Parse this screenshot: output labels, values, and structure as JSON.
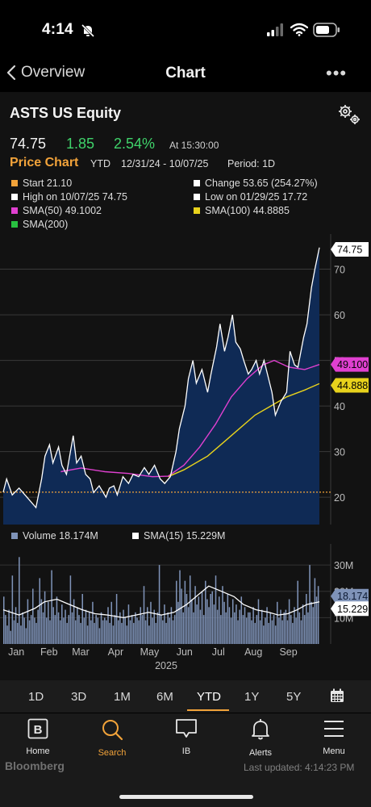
{
  "status_bar": {
    "time": "4:14"
  },
  "nav": {
    "back_label": "Overview",
    "title": "Chart",
    "more_label": "•••"
  },
  "quote": {
    "ticker": "ASTS US Equity",
    "price": "74.75",
    "change": "1.85",
    "change_pct": "2.54%",
    "time_label": "At 15:30:00"
  },
  "chart_header": {
    "title": "Price Chart",
    "range": "YTD",
    "dates": "12/31/24 - 10/07/25",
    "period": "Period: 1D"
  },
  "legend": {
    "start": "Start  21.10",
    "change": "Change  53.65 (254.27%)",
    "high": "High on 10/07/25  74.75",
    "low": "Low on 01/29/25  17.72",
    "sma50": "SMA(50)  49.1002",
    "sma100": "SMA(100)  44.8885",
    "sma200": "SMA(200)"
  },
  "volume_legend": {
    "volume": "Volume  18.174M",
    "sma15": "SMA(15)  15.229M"
  },
  "badges": {
    "price": "74.75",
    "sma50": "49.100",
    "sma100": "44.888",
    "volume": "18.174",
    "vol_sma": "15.229"
  },
  "colors": {
    "accent": "#f2a33a",
    "up": "#3fd26a",
    "sma50": "#e040d0",
    "sma100": "#e8d21c",
    "sma200": "#28c040",
    "area": "#0f2a55",
    "volume_bar": "#7f93b8"
  },
  "chart_data": {
    "type": "area",
    "title": "Price Chart",
    "x_ticks": [
      "Jan",
      "Feb",
      "Mar",
      "Apr",
      "May",
      "Jun",
      "Jul",
      "Aug",
      "Sep"
    ],
    "x_sublabel": "2025",
    "y_ticks": [
      20,
      30,
      40,
      50,
      60,
      70
    ],
    "ylim": [
      14,
      77
    ],
    "price_reference_line": 21.1,
    "price_series": {
      "name": "ASTS",
      "points": [
        [
          "2024-12-31",
          21.1
        ],
        [
          "2025-01-03",
          24.0
        ],
        [
          "2025-01-08",
          20.5
        ],
        [
          "2025-01-14",
          22.0
        ],
        [
          "2025-01-21",
          20.0
        ],
        [
          "2025-01-29",
          17.72
        ],
        [
          "2025-02-03",
          24.0
        ],
        [
          "2025-02-06",
          29.0
        ],
        [
          "2025-02-10",
          31.5
        ],
        [
          "2025-02-13",
          27.5
        ],
        [
          "2025-02-18",
          31.0
        ],
        [
          "2025-02-21",
          27.0
        ],
        [
          "2025-02-25",
          25.0
        ],
        [
          "2025-03-03",
          33.5
        ],
        [
          "2025-03-06",
          27.5
        ],
        [
          "2025-03-10",
          29.0
        ],
        [
          "2025-03-14",
          25.0
        ],
        [
          "2025-03-18",
          24.0
        ],
        [
          "2025-03-21",
          21.0
        ],
        [
          "2025-03-26",
          22.5
        ],
        [
          "2025-04-01",
          20.0
        ],
        [
          "2025-04-04",
          22.0
        ],
        [
          "2025-04-08",
          22.5
        ],
        [
          "2025-04-11",
          20.5
        ],
        [
          "2025-04-16",
          24.5
        ],
        [
          "2025-04-21",
          23.0
        ],
        [
          "2025-04-25",
          25.0
        ],
        [
          "2025-04-30",
          24.5
        ],
        [
          "2025-05-05",
          26.5
        ],
        [
          "2025-05-09",
          25.0
        ],
        [
          "2025-05-14",
          27.0
        ],
        [
          "2025-05-19",
          24.0
        ],
        [
          "2025-05-23",
          23.0
        ],
        [
          "2025-05-28",
          24.5
        ],
        [
          "2025-06-02",
          30.0
        ],
        [
          "2025-06-05",
          35.0
        ],
        [
          "2025-06-10",
          40.0
        ],
        [
          "2025-06-13",
          46.0
        ],
        [
          "2025-06-17",
          50.0
        ],
        [
          "2025-06-20",
          45.0
        ],
        [
          "2025-06-25",
          48.0
        ],
        [
          "2025-06-30",
          43.0
        ],
        [
          "2025-07-03",
          47.0
        ],
        [
          "2025-07-08",
          53.0
        ],
        [
          "2025-07-11",
          58.0
        ],
        [
          "2025-07-15",
          52.0
        ],
        [
          "2025-07-18",
          55.0
        ],
        [
          "2025-07-22",
          60.0
        ],
        [
          "2025-07-25",
          54.0
        ],
        [
          "2025-07-29",
          52.5
        ],
        [
          "2025-08-01",
          50.0
        ],
        [
          "2025-08-05",
          47.0
        ],
        [
          "2025-08-08",
          48.0
        ],
        [
          "2025-08-12",
          50.0
        ],
        [
          "2025-08-15",
          47.0
        ],
        [
          "2025-08-19",
          50.0
        ],
        [
          "2025-08-22",
          47.0
        ],
        [
          "2025-08-26",
          43.0
        ],
        [
          "2025-08-29",
          38.0
        ],
        [
          "2025-09-03",
          41.0
        ],
        [
          "2025-09-08",
          43.0
        ],
        [
          "2025-09-11",
          52.0
        ],
        [
          "2025-09-15",
          49.0
        ],
        [
          "2025-09-18",
          48.5
        ],
        [
          "2025-09-23",
          55.0
        ],
        [
          "2025-09-26",
          58.0
        ],
        [
          "2025-09-30",
          66.0
        ],
        [
          "2025-10-03",
          70.0
        ],
        [
          "2025-10-07",
          74.75
        ]
      ]
    },
    "sma50_series": {
      "name": "SMA(50)",
      "points": [
        [
          "2025-02-20",
          25.6
        ],
        [
          "2025-03-10",
          26.4
        ],
        [
          "2025-03-31",
          25.6
        ],
        [
          "2025-04-21",
          25.2
        ],
        [
          "2025-05-12",
          24.5
        ],
        [
          "2025-05-26",
          24.6
        ],
        [
          "2025-06-09",
          27.0
        ],
        [
          "2025-06-23",
          31.0
        ],
        [
          "2025-07-07",
          36.0
        ],
        [
          "2025-07-21",
          42.0
        ],
        [
          "2025-08-04",
          46.0
        ],
        [
          "2025-08-18",
          49.0
        ],
        [
          "2025-08-28",
          50.0
        ],
        [
          "2025-09-10",
          48.5
        ],
        [
          "2025-09-24",
          48.0
        ],
        [
          "2025-10-07",
          49.1
        ]
      ]
    },
    "sma100_series": {
      "name": "SMA(100)",
      "points": [
        [
          "2025-05-26",
          24.5
        ],
        [
          "2025-06-09",
          26.0
        ],
        [
          "2025-06-30",
          29.0
        ],
        [
          "2025-07-14",
          32.0
        ],
        [
          "2025-07-28",
          35.0
        ],
        [
          "2025-08-11",
          38.0
        ],
        [
          "2025-08-25",
          40.0
        ],
        [
          "2025-09-08",
          42.0
        ],
        [
          "2025-09-24",
          43.5
        ],
        [
          "2025-10-07",
          44.89
        ]
      ]
    },
    "volume": {
      "name": "Volume",
      "unit": "M",
      "y_ticks": [
        "10M",
        "20M",
        "30M"
      ],
      "ylim": [
        0,
        38
      ],
      "sma_name": "SMA(15)",
      "monthly_levels": [
        {
          "month": "Jan",
          "values": [
            18,
            11,
            7,
            13,
            5,
            26,
            9,
            14,
            8,
            33,
            7,
            12,
            10,
            6,
            17,
            9,
            11,
            21,
            10,
            8
          ]
        },
        {
          "month": "Feb",
          "values": [
            13,
            25,
            17,
            12,
            20,
            10,
            16,
            9,
            28,
            14,
            11,
            18,
            12,
            9,
            15,
            10,
            13,
            8,
            11
          ]
        },
        {
          "month": "Mar",
          "values": [
            26,
            12,
            17,
            9,
            14,
            11,
            8,
            19,
            10,
            13,
            7,
            12,
            9,
            16,
            8,
            11,
            10,
            6,
            12,
            9,
            10
          ]
        },
        {
          "month": "Apr",
          "values": [
            9,
            14,
            8,
            16,
            7,
            11,
            19,
            9,
            12,
            8,
            13,
            10,
            7,
            15,
            9,
            11,
            8,
            12,
            10,
            9,
            14
          ]
        },
        {
          "month": "May",
          "values": [
            11,
            22,
            9,
            14,
            7,
            16,
            10,
            13,
            8,
            12,
            30,
            11,
            9,
            15,
            8,
            12,
            10,
            14,
            9,
            11,
            24
          ]
        },
        {
          "month": "Jun",
          "values": [
            16,
            28,
            21,
            12,
            24,
            19,
            14,
            26,
            17,
            12,
            22,
            15,
            18,
            13,
            20,
            11,
            24,
            17,
            14,
            19
          ]
        },
        {
          "month": "Jul",
          "values": [
            20,
            15,
            26,
            13,
            18,
            11,
            22,
            16,
            12,
            19,
            14,
            10,
            17,
            12,
            15,
            9,
            13,
            18,
            11,
            14,
            10,
            12
          ]
        },
        {
          "month": "Aug",
          "values": [
            12,
            9,
            14,
            8,
            11,
            17,
            9,
            13,
            7,
            10,
            14,
            8,
            12,
            9,
            11,
            7,
            16,
            10,
            13,
            9,
            12
          ]
        },
        {
          "month": "Sep",
          "values": [
            13,
            9,
            17,
            11,
            8,
            14,
            10,
            24,
            12,
            9,
            15,
            11,
            19,
            12,
            30,
            16,
            14,
            25,
            18,
            22
          ]
        }
      ],
      "sma_points": [
        [
          0,
          13
        ],
        [
          0.05,
          11
        ],
        [
          0.1,
          13.5
        ],
        [
          0.13,
          16
        ],
        [
          0.17,
          17
        ],
        [
          0.21,
          15
        ],
        [
          0.25,
          13
        ],
        [
          0.29,
          11.5
        ],
        [
          0.33,
          11
        ],
        [
          0.38,
          10
        ],
        [
          0.42,
          11
        ],
        [
          0.46,
          12
        ],
        [
          0.5,
          11
        ],
        [
          0.54,
          12
        ],
        [
          0.58,
          15
        ],
        [
          0.62,
          19
        ],
        [
          0.65,
          22
        ],
        [
          0.69,
          20
        ],
        [
          0.73,
          18
        ],
        [
          0.76,
          15
        ],
        [
          0.8,
          13
        ],
        [
          0.84,
          12
        ],
        [
          0.87,
          11
        ],
        [
          0.9,
          11.5
        ],
        [
          0.93,
          13
        ],
        [
          0.96,
          15
        ],
        [
          1,
          16
        ]
      ]
    }
  },
  "timeframes": [
    "1D",
    "3D",
    "1M",
    "6M",
    "YTD",
    "1Y",
    "5Y"
  ],
  "selected_timeframe": "YTD",
  "tabs": [
    {
      "label": "Home",
      "icon": "home-b-icon"
    },
    {
      "label": "Search",
      "icon": "search-icon"
    },
    {
      "label": "IB",
      "icon": "chat-bubble-icon"
    },
    {
      "label": "Alerts",
      "icon": "bell-icon"
    },
    {
      "label": "Menu",
      "icon": "menu-icon"
    }
  ],
  "footer": {
    "brand": "Bloomberg",
    "updated": "Last updated: 4:14:23 PM"
  }
}
